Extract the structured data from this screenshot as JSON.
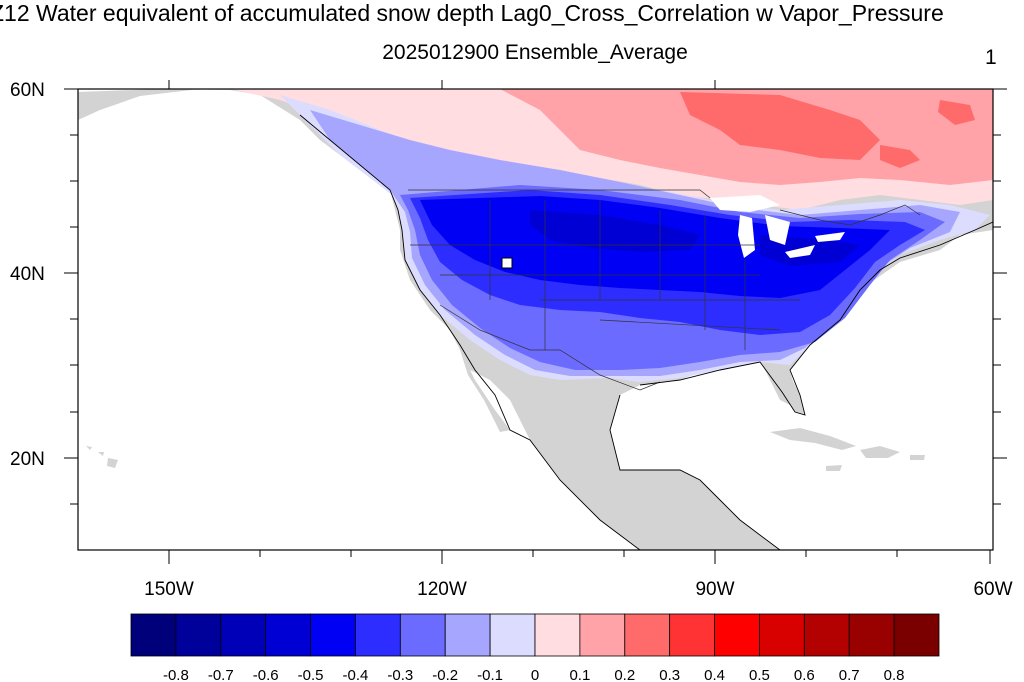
{
  "header": {
    "title": "Z12 Water equivalent of accumulated snow depth Lag0_Cross_Correlation w Vapor_Pressure",
    "subtitle": "2025012900 Ensemble_Average",
    "panel_number": "1"
  },
  "map": {
    "lon_range": [
      -160,
      -60
    ],
    "lat_range": [
      10,
      60
    ],
    "lat_labels": [
      "60N",
      "40N",
      "20N"
    ],
    "lon_labels": [
      "150W",
      "120W",
      "90W",
      "60W"
    ],
    "land_color": "#d3d3d3",
    "ocean_color": "#ffffff"
  },
  "colorbar": {
    "labels": [
      "-0.8",
      "-0.7",
      "-0.6",
      "-0.5",
      "-0.4",
      "-0.3",
      "-0.2",
      "-0.1",
      "0",
      "0.1",
      "0.2",
      "0.3",
      "0.4",
      "0.5",
      "0.6",
      "0.7",
      "0.8"
    ],
    "colors": [
      "#00007a",
      "#00009a",
      "#0000b8",
      "#0000d4",
      "#0000f5",
      "#2d2dff",
      "#6b6bff",
      "#a6a6ff",
      "#dcdcff",
      "#ffdde1",
      "#ffa3a8",
      "#ff6b6b",
      "#ff3333",
      "#ff0000",
      "#d90000",
      "#b30000",
      "#990000",
      "#7a0000"
    ]
  }
}
